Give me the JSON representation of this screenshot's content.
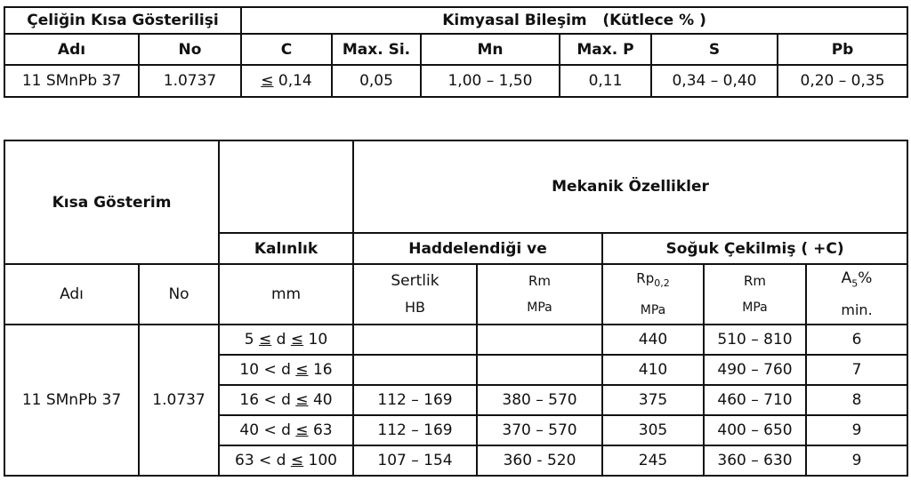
{
  "composition_table": {
    "group_header": "Çeliğin Kısa Gösterilişi",
    "composition_header": "Kimyasal Bileşim   (Kütlece % )",
    "columns": [
      "Adı",
      "No",
      "C",
      "Max. Si.",
      "Mn",
      "Max. P",
      "S",
      "Pb"
    ],
    "row": [
      "11 SMnPb 37",
      "1.0737",
      "≤ 0,14",
      "0,05",
      "1,00 – 1,50",
      "0,11",
      "0,34 – 0,40",
      "0,20 – 0,35"
    ]
  },
  "mechanical_table": {
    "short_header": "Kısa Gösterim",
    "mech_header": "Mekanik Özellikler",
    "thickness_header": "Kalınlık",
    "rolled_header": "Haddelendiği ve",
    "cold_drawn_header": "Soğuk Çekilmiş ( +C)",
    "sub_headers": {
      "name": "Adı",
      "no": "No",
      "mm": "mm",
      "hardness": "Sertlik",
      "hardness_unit": "HB",
      "rm1": "Rm",
      "rm1_unit": "MPa",
      "rp": "Rp",
      "rp_sub": "0,2",
      "rp_unit": "MPa",
      "rm2": "Rm",
      "rm2_unit": "MPa",
      "a": "A",
      "a_sub": "5",
      "a_suffix": "%",
      "a_unit": "min."
    },
    "name": "11 SMnPb 37",
    "no": "1.0737",
    "rows": [
      {
        "thickness": "5 ≤ d ≤ 10",
        "hb": "",
        "rm_rolled": "",
        "rp": "440",
        "rm_cold": "510 – 810",
        "a5": "6"
      },
      {
        "thickness": "10 < d ≤ 16",
        "hb": "",
        "rm_rolled": "",
        "rp": "410",
        "rm_cold": "490 – 760",
        "a5": "7"
      },
      {
        "thickness": "16 < d ≤ 40",
        "hb": "112 – 169",
        "rm_rolled": "380 – 570",
        "rp": "375",
        "rm_cold": "460 – 710",
        "a5": "8"
      },
      {
        "thickness": "40 < d ≤ 63",
        "hb": "112 – 169",
        "rm_rolled": "370 – 570",
        "rp": "305",
        "rm_cold": "400 – 650",
        "a5": "9"
      },
      {
        "thickness": "63 < d ≤ 100",
        "hb": "107 – 154",
        "rm_rolled": "360 - 520",
        "rp": "245",
        "rm_cold": "360 – 630",
        "a5": "9"
      }
    ]
  }
}
